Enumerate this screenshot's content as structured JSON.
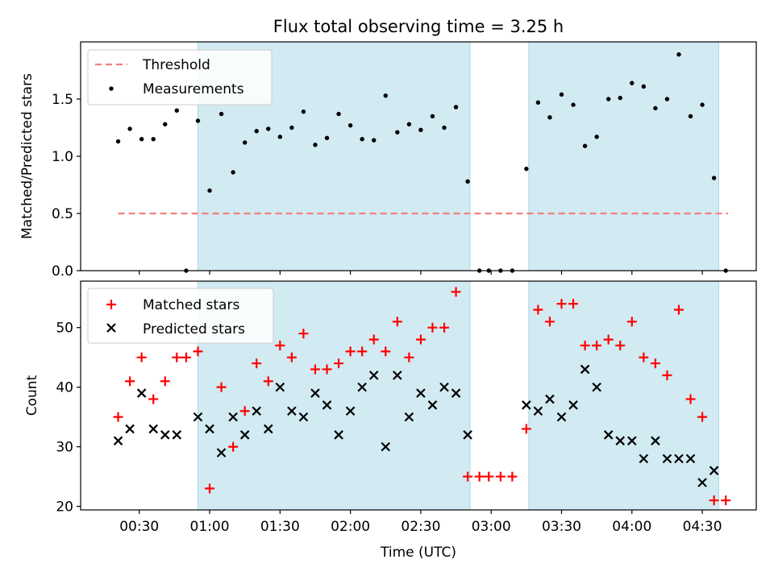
{
  "chart_data": {
    "type": "scatter",
    "title": "Flux total observing time = 3.25 h",
    "xlabel": "Time (UTC)",
    "x_ticks": [
      "00:30",
      "01:00",
      "01:30",
      "02:00",
      "02:30",
      "03:00",
      "03:30",
      "04:00",
      "04:30"
    ],
    "x_range_minutes": [
      5,
      293
    ],
    "shaded_intervals": [
      [
        "00:55",
        "02:51"
      ],
      [
        "03:16",
        "04:37"
      ]
    ],
    "colors": {
      "shade": "#add8e6",
      "threshold": "#f08080",
      "measurement": "#000000",
      "matched": "#ff0000",
      "predicted": "#000000"
    },
    "top": {
      "ylabel": "Matched/Predicted stars",
      "ylim": [
        0,
        2.0
      ],
      "y_ticks": [
        "0.0",
        "0.5",
        "1.0",
        "1.5"
      ],
      "legend": {
        "position": "upper-left",
        "threshold_label": "Threshold",
        "measurements_label": "Measurements"
      },
      "threshold": 0.5,
      "threshold_x_range": [
        "00:21",
        "04:41"
      ],
      "measurements": [
        [
          "00:21",
          1.13
        ],
        [
          "00:26",
          1.24
        ],
        [
          "00:31",
          1.15
        ],
        [
          "00:36",
          1.15
        ],
        [
          "00:41",
          1.28
        ],
        [
          "00:46",
          1.4
        ],
        [
          "00:50",
          0.0
        ],
        [
          "00:55",
          1.31
        ],
        [
          "01:00",
          0.7
        ],
        [
          "01:05",
          1.37
        ],
        [
          "01:10",
          0.86
        ],
        [
          "01:15",
          1.12
        ],
        [
          "01:20",
          1.22
        ],
        [
          "01:25",
          1.24
        ],
        [
          "01:30",
          1.17
        ],
        [
          "01:35",
          1.25
        ],
        [
          "01:40",
          1.39
        ],
        [
          "01:45",
          1.1
        ],
        [
          "01:50",
          1.16
        ],
        [
          "01:55",
          1.37
        ],
        [
          "02:00",
          1.27
        ],
        [
          "02:05",
          1.15
        ],
        [
          "02:10",
          1.14
        ],
        [
          "02:15",
          1.53
        ],
        [
          "02:20",
          1.21
        ],
        [
          "02:25",
          1.28
        ],
        [
          "02:30",
          1.23
        ],
        [
          "02:35",
          1.35
        ],
        [
          "02:40",
          1.25
        ],
        [
          "02:45",
          1.43
        ],
        [
          "02:50",
          0.78
        ],
        [
          "02:55",
          0.0
        ],
        [
          "02:59",
          0.0
        ],
        [
          "03:04",
          0.0
        ],
        [
          "03:09",
          0.0
        ],
        [
          "03:15",
          0.89
        ],
        [
          "03:20",
          1.47
        ],
        [
          "03:25",
          1.34
        ],
        [
          "03:30",
          1.54
        ],
        [
          "03:35",
          1.45
        ],
        [
          "03:40",
          1.09
        ],
        [
          "03:45",
          1.17
        ],
        [
          "03:50",
          1.5
        ],
        [
          "03:55",
          1.51
        ],
        [
          "04:00",
          1.64
        ],
        [
          "04:05",
          1.61
        ],
        [
          "04:10",
          1.42
        ],
        [
          "04:15",
          1.5
        ],
        [
          "04:20",
          1.89
        ],
        [
          "04:25",
          1.35
        ],
        [
          "04:30",
          1.45
        ],
        [
          "04:35",
          0.81
        ],
        [
          "04:40",
          0.0
        ]
      ]
    },
    "bottom": {
      "ylabel": "Count",
      "ylim": [
        19.4,
        57.8
      ],
      "y_ticks": [
        "20",
        "30",
        "40",
        "50"
      ],
      "legend": {
        "position": "upper-left",
        "matched_label": "Matched stars",
        "predicted_label": "Predicted stars"
      },
      "matched": [
        [
          "00:21",
          35
        ],
        [
          "00:26",
          41
        ],
        [
          "00:31",
          45
        ],
        [
          "00:36",
          38
        ],
        [
          "00:41",
          41
        ],
        [
          "00:46",
          45
        ],
        [
          "00:50",
          45
        ],
        [
          "00:55",
          46
        ],
        [
          "01:00",
          23
        ],
        [
          "01:05",
          40
        ],
        [
          "01:10",
          30
        ],
        [
          "01:15",
          36
        ],
        [
          "01:20",
          44
        ],
        [
          "01:25",
          41
        ],
        [
          "01:30",
          47
        ],
        [
          "01:35",
          45
        ],
        [
          "01:40",
          49
        ],
        [
          "01:45",
          43
        ],
        [
          "01:50",
          43
        ],
        [
          "01:55",
          44
        ],
        [
          "02:00",
          46
        ],
        [
          "02:05",
          46
        ],
        [
          "02:10",
          48
        ],
        [
          "02:15",
          46
        ],
        [
          "02:20",
          51
        ],
        [
          "02:25",
          45
        ],
        [
          "02:30",
          48
        ],
        [
          "02:35",
          50
        ],
        [
          "02:40",
          50
        ],
        [
          "02:45",
          56
        ],
        [
          "02:50",
          25
        ],
        [
          "02:55",
          25
        ],
        [
          "02:59",
          25
        ],
        [
          "03:04",
          25
        ],
        [
          "03:09",
          25
        ],
        [
          "03:15",
          33
        ],
        [
          "03:20",
          53
        ],
        [
          "03:25",
          51
        ],
        [
          "03:30",
          54
        ],
        [
          "03:35",
          54
        ],
        [
          "03:40",
          47
        ],
        [
          "03:45",
          47
        ],
        [
          "03:50",
          48
        ],
        [
          "03:55",
          47
        ],
        [
          "04:00",
          51
        ],
        [
          "04:05",
          45
        ],
        [
          "04:10",
          44
        ],
        [
          "04:15",
          42
        ],
        [
          "04:20",
          53
        ],
        [
          "04:25",
          38
        ],
        [
          "04:30",
          35
        ],
        [
          "04:35",
          21
        ],
        [
          "04:40",
          21
        ]
      ],
      "predicted": [
        [
          "00:21",
          31
        ],
        [
          "00:26",
          33
        ],
        [
          "00:31",
          39
        ],
        [
          "00:36",
          33
        ],
        [
          "00:41",
          32
        ],
        [
          "00:46",
          32
        ],
        [
          "00:55",
          35
        ],
        [
          "01:00",
          33
        ],
        [
          "01:05",
          29
        ],
        [
          "01:10",
          35
        ],
        [
          "01:15",
          32
        ],
        [
          "01:20",
          36
        ],
        [
          "01:25",
          33
        ],
        [
          "01:30",
          40
        ],
        [
          "01:35",
          36
        ],
        [
          "01:40",
          35
        ],
        [
          "01:45",
          39
        ],
        [
          "01:50",
          37
        ],
        [
          "01:55",
          32
        ],
        [
          "02:00",
          36
        ],
        [
          "02:05",
          40
        ],
        [
          "02:10",
          42
        ],
        [
          "02:15",
          30
        ],
        [
          "02:20",
          42
        ],
        [
          "02:25",
          35
        ],
        [
          "02:30",
          39
        ],
        [
          "02:35",
          37
        ],
        [
          "02:40",
          40
        ],
        [
          "02:45",
          39
        ],
        [
          "02:50",
          32
        ],
        [
          "03:15",
          37
        ],
        [
          "03:20",
          36
        ],
        [
          "03:25",
          38
        ],
        [
          "03:30",
          35
        ],
        [
          "03:35",
          37
        ],
        [
          "03:40",
          43
        ],
        [
          "03:45",
          40
        ],
        [
          "03:50",
          32
        ],
        [
          "03:55",
          31
        ],
        [
          "04:00",
          31
        ],
        [
          "04:05",
          28
        ],
        [
          "04:10",
          31
        ],
        [
          "04:15",
          28
        ],
        [
          "04:20",
          28
        ],
        [
          "04:25",
          28
        ],
        [
          "04:30",
          24
        ],
        [
          "04:35",
          26
        ]
      ]
    }
  }
}
